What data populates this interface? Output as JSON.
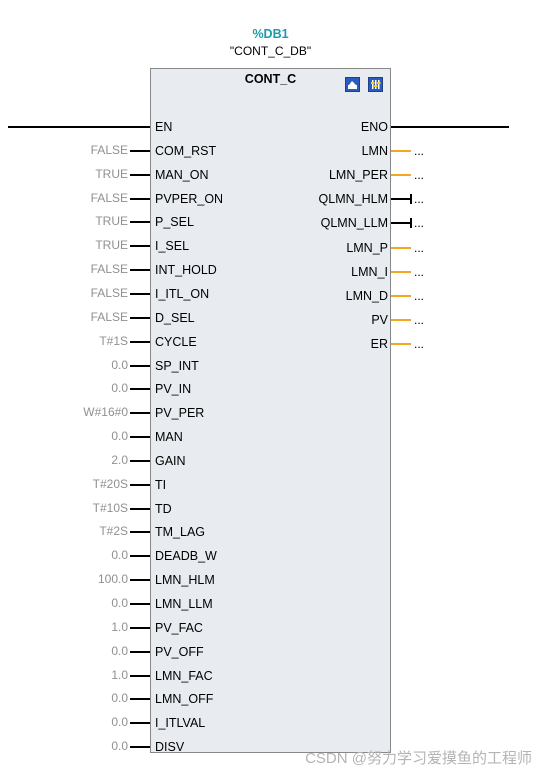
{
  "instance": {
    "db_number": "%DB1",
    "db_name": "\"CONT_C_DB\""
  },
  "block": {
    "title": "CONT_C",
    "icons": [
      "open-block-icon",
      "settings-icon"
    ]
  },
  "colors": {
    "wire": "#000000",
    "output_pin": "#f5a623",
    "block_fill": "#e8ebf0",
    "db_label": "#1a9bab",
    "value_text": "#909090"
  },
  "inputs": [
    {
      "name": "EN",
      "value": ""
    },
    {
      "name": "COM_RST",
      "value": "FALSE"
    },
    {
      "name": "MAN_ON",
      "value": "TRUE"
    },
    {
      "name": "PVPER_ON",
      "value": "FALSE"
    },
    {
      "name": "P_SEL",
      "value": "TRUE"
    },
    {
      "name": "I_SEL",
      "value": "TRUE"
    },
    {
      "name": "INT_HOLD",
      "value": "FALSE"
    },
    {
      "name": "I_ITL_ON",
      "value": "FALSE"
    },
    {
      "name": "D_SEL",
      "value": "FALSE"
    },
    {
      "name": "CYCLE",
      "value": "T#1S"
    },
    {
      "name": "SP_INT",
      "value": "0.0"
    },
    {
      "name": "PV_IN",
      "value": "0.0"
    },
    {
      "name": "PV_PER",
      "value": "W#16#0"
    },
    {
      "name": "MAN",
      "value": "0.0"
    },
    {
      "name": "GAIN",
      "value": "2.0"
    },
    {
      "name": "TI",
      "value": "T#20S"
    },
    {
      "name": "TD",
      "value": "T#10S"
    },
    {
      "name": "TM_LAG",
      "value": "T#2S"
    },
    {
      "name": "DEADB_W",
      "value": "0.0"
    },
    {
      "name": "LMN_HLM",
      "value": "100.0"
    },
    {
      "name": "LMN_LLM",
      "value": "0.0"
    },
    {
      "name": "PV_FAC",
      "value": "1.0"
    },
    {
      "name": "PV_OFF",
      "value": "0.0"
    },
    {
      "name": "LMN_FAC",
      "value": "1.0"
    },
    {
      "name": "LMN_OFF",
      "value": "0.0"
    },
    {
      "name": "I_ITLVAL",
      "value": "0.0"
    },
    {
      "name": "DISV",
      "value": "0.0"
    }
  ],
  "outputs": [
    {
      "name": "ENO",
      "value": "",
      "kind": "enable"
    },
    {
      "name": "LMN",
      "value": "...",
      "kind": "analog"
    },
    {
      "name": "LMN_PER",
      "value": "...",
      "kind": "analog"
    },
    {
      "name": "QLMN_HLM",
      "value": "...",
      "kind": "bool"
    },
    {
      "name": "QLMN_LLM",
      "value": "...",
      "kind": "bool"
    },
    {
      "name": "LMN_P",
      "value": "...",
      "kind": "analog"
    },
    {
      "name": "LMN_I",
      "value": "...",
      "kind": "analog"
    },
    {
      "name": "LMN_D",
      "value": "...",
      "kind": "analog"
    },
    {
      "name": "PV",
      "value": "...",
      "kind": "analog"
    },
    {
      "name": "ER",
      "value": "...",
      "kind": "analog"
    }
  ],
  "watermark": "CSDN @努力学习爱摸鱼的工程师"
}
